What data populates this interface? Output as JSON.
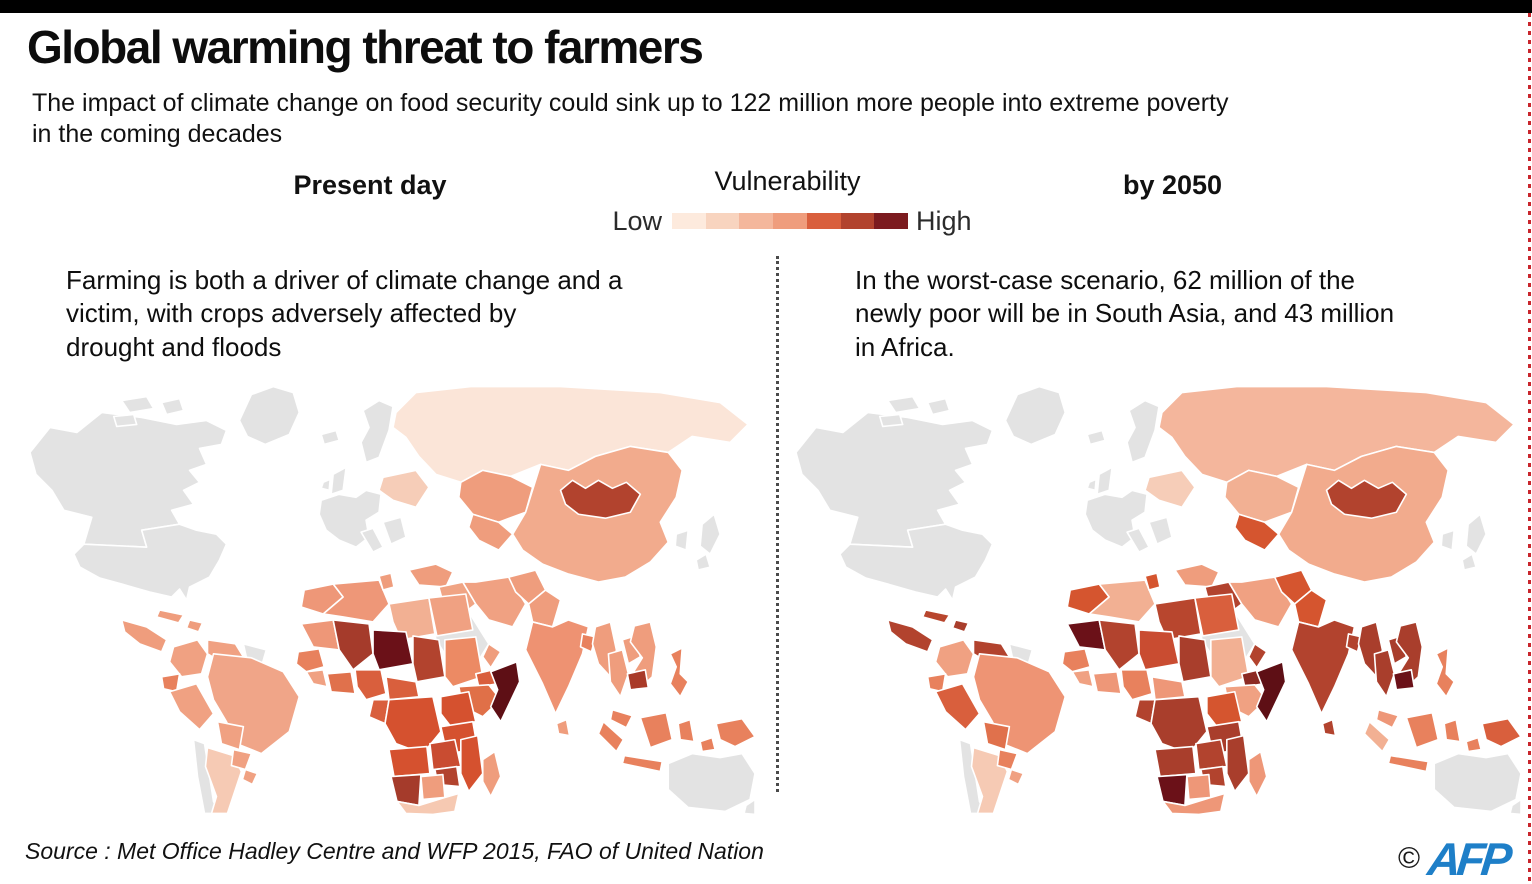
{
  "header": {
    "title": "Global warming threat to farmers",
    "subtitle": "The impact of climate change on food security could sink up to 122 million more people into extreme poverty\nin the coming decades"
  },
  "legend": {
    "title": "Vulnerability",
    "low_label": "Low",
    "high_label": "High",
    "scale": [
      "#fdeadd",
      "#f8d4bf",
      "#f4b79c",
      "#ef9d7d",
      "#d95f3d",
      "#b2432e",
      "#7c1b1f"
    ]
  },
  "panels": {
    "present": {
      "heading": "Present day",
      "caption": "Farming is both a driver of climate change and a\nvictim, with crops adversely affected by\ndrought and floods"
    },
    "by2050": {
      "heading": "by 2050",
      "caption": "In the worst-case scenario, 62 million of the\nnewly poor will be in South Asia, and 43 million\nin Africa."
    }
  },
  "maps": {
    "no_data_color": "#e3e3e3",
    "stroke_color": "#ffffff",
    "present_fills": {
      "russia": "#fbe5d8",
      "east-europe": "#f6cdb8",
      "kazakhstan": "#ef9d7d",
      "central-asia": "#ef9d7d",
      "mongolia": "#b2432e",
      "china": "#f2ab8d",
      "turkey": "#ef9d7d",
      "syria-iraq": "#f0a484",
      "iran": "#f0a182",
      "afghanistan": "#ef9d7d",
      "pakistan": "#ef9d7d",
      "india": "#ee9272",
      "sri-lanka": "#ef9d7d",
      "bangladesh": "#e8815d",
      "myanmar": "#ef9d7d",
      "thailand": "#ef9d7d",
      "laos": "#ef9d7d",
      "vietnam": "#ef9d7d",
      "cambodia": "#a93a28",
      "malaysia": "#e8815d",
      "sumatra": "#e8815d",
      "java": "#e8815d",
      "borneo": "#e8815d",
      "sulawesi": "#e8815d",
      "moluccas": "#e8815d",
      "philippines": "#e8815d",
      "png": "#e8815d",
      "yemen": "#e07048",
      "oman": "#ef9d7d",
      "morocco": "#ee9778",
      "algeria": "#ee9778",
      "tunisia": "#ef9d7d",
      "libya": "#f2b093",
      "egypt": "#f0a182",
      "mauritania": "#ee9778",
      "mali": "#a53b2b",
      "niger": "#6b1118",
      "chad": "#b2432e",
      "sudan": "#ec8a64",
      "eritrea": "#d95f3d",
      "ethiopia": "#e07048",
      "somalia": "#5e0f15",
      "senegal": "#e8815d",
      "sierra-liberia": "#f0a182",
      "ivory-ghana": "#e0714c",
      "nigeria": "#d95f3d",
      "cameroon-car": "#d95f3d",
      "congo-gabon": "#d95f3d",
      "drc": "#d5512f",
      "uganda-kenya": "#d5512f",
      "tanzania": "#d5512f",
      "angola": "#d5512f",
      "zambia": "#c94c31",
      "zimbabwe": "#b2432e",
      "mozambique": "#d5512f",
      "namibia": "#a53b2b",
      "botswana": "#ef9d7d",
      "south-africa": "#f6c9b2",
      "madagascar": "#ef9d7d",
      "central-america": "#ef9d7d",
      "cuba": "#ef9d7d",
      "hispaniola": "#ef9d7d",
      "colombia": "#f0a182",
      "venezuela": "#f0a182",
      "ecuador": "#e8815d",
      "peru": "#f0a182",
      "brazil": "#f0a588",
      "bolivia": "#f0a182",
      "paraguay": "#f0a182",
      "argentina": "#f6cab4",
      "uruguay": "#f0a182"
    },
    "by2050_fills": {
      "russia": "#f4b69c",
      "east-europe": "#f6cdb8",
      "kazakhstan": "#f2b093",
      "central-asia": "#d5552f",
      "mongolia": "#b2432e",
      "china": "#f2ab8d",
      "turkey": "#ef9d7d",
      "syria-iraq": "#b2432e",
      "iran": "#f0a182",
      "afghanistan": "#d5552f",
      "pakistan": "#d5552f",
      "india": "#b2432e",
      "sri-lanka": "#b2432e",
      "bangladesh": "#b2432e",
      "myanmar": "#a93e2c",
      "thailand": "#a93e2c",
      "laos": "#a93e2c",
      "vietnam": "#a93e2c",
      "cambodia": "#6b1118",
      "malaysia": "#ee9778",
      "sumatra": "#f2b093",
      "java": "#e8815d",
      "borneo": "#e8815d",
      "sulawesi": "#e8815d",
      "moluccas": "#e8815d",
      "philippines": "#e8815d",
      "png": "#d95f3d",
      "yemen": "#8c2a23",
      "oman": "#b2432e",
      "morocco": "#d5552f",
      "algeria": "#f2b093",
      "tunisia": "#d5552f",
      "libya": "#b8462e",
      "egypt": "#d95f3d",
      "mauritania": "#6b1118",
      "mali": "#b2432e",
      "niger": "#c94c31",
      "chad": "#a93e2c",
      "sudan": "#f2b093",
      "eritrea": "#8c2a23",
      "ethiopia": "#f0a182",
      "somalia": "#5e0f15",
      "senegal": "#e8815d",
      "sierra-liberia": "#f0a182",
      "ivory-ghana": "#ee9778",
      "nigeria": "#e8815d",
      "cameroon-car": "#ee9778",
      "congo-gabon": "#b2432e",
      "drc": "#a93e2c",
      "uganda-kenya": "#d5552f",
      "tanzania": "#a93e2c",
      "angola": "#a93e2c",
      "zambia": "#b2432e",
      "zimbabwe": "#b2432e",
      "mozambique": "#a93e2c",
      "namibia": "#6b1118",
      "botswana": "#ee9778",
      "south-africa": "#ee9778",
      "madagascar": "#ee9778",
      "central-america": "#b2432e",
      "cuba": "#b8462e",
      "hispaniola": "#a93e2c",
      "colombia": "#f0a182",
      "venezuela": "#b2432e",
      "ecuador": "#e8815d",
      "peru": "#d95f3d",
      "brazil": "#ee9474",
      "bolivia": "#e0714c",
      "paraguay": "#e8815d",
      "argentina": "#f6cab4",
      "uruguay": "#f0a182"
    }
  },
  "footer": {
    "source": "Source : Met Office Hadley Centre and WFP 2015, FAO of United Nation",
    "copyright_symbol": "©",
    "credit": "AFP"
  }
}
